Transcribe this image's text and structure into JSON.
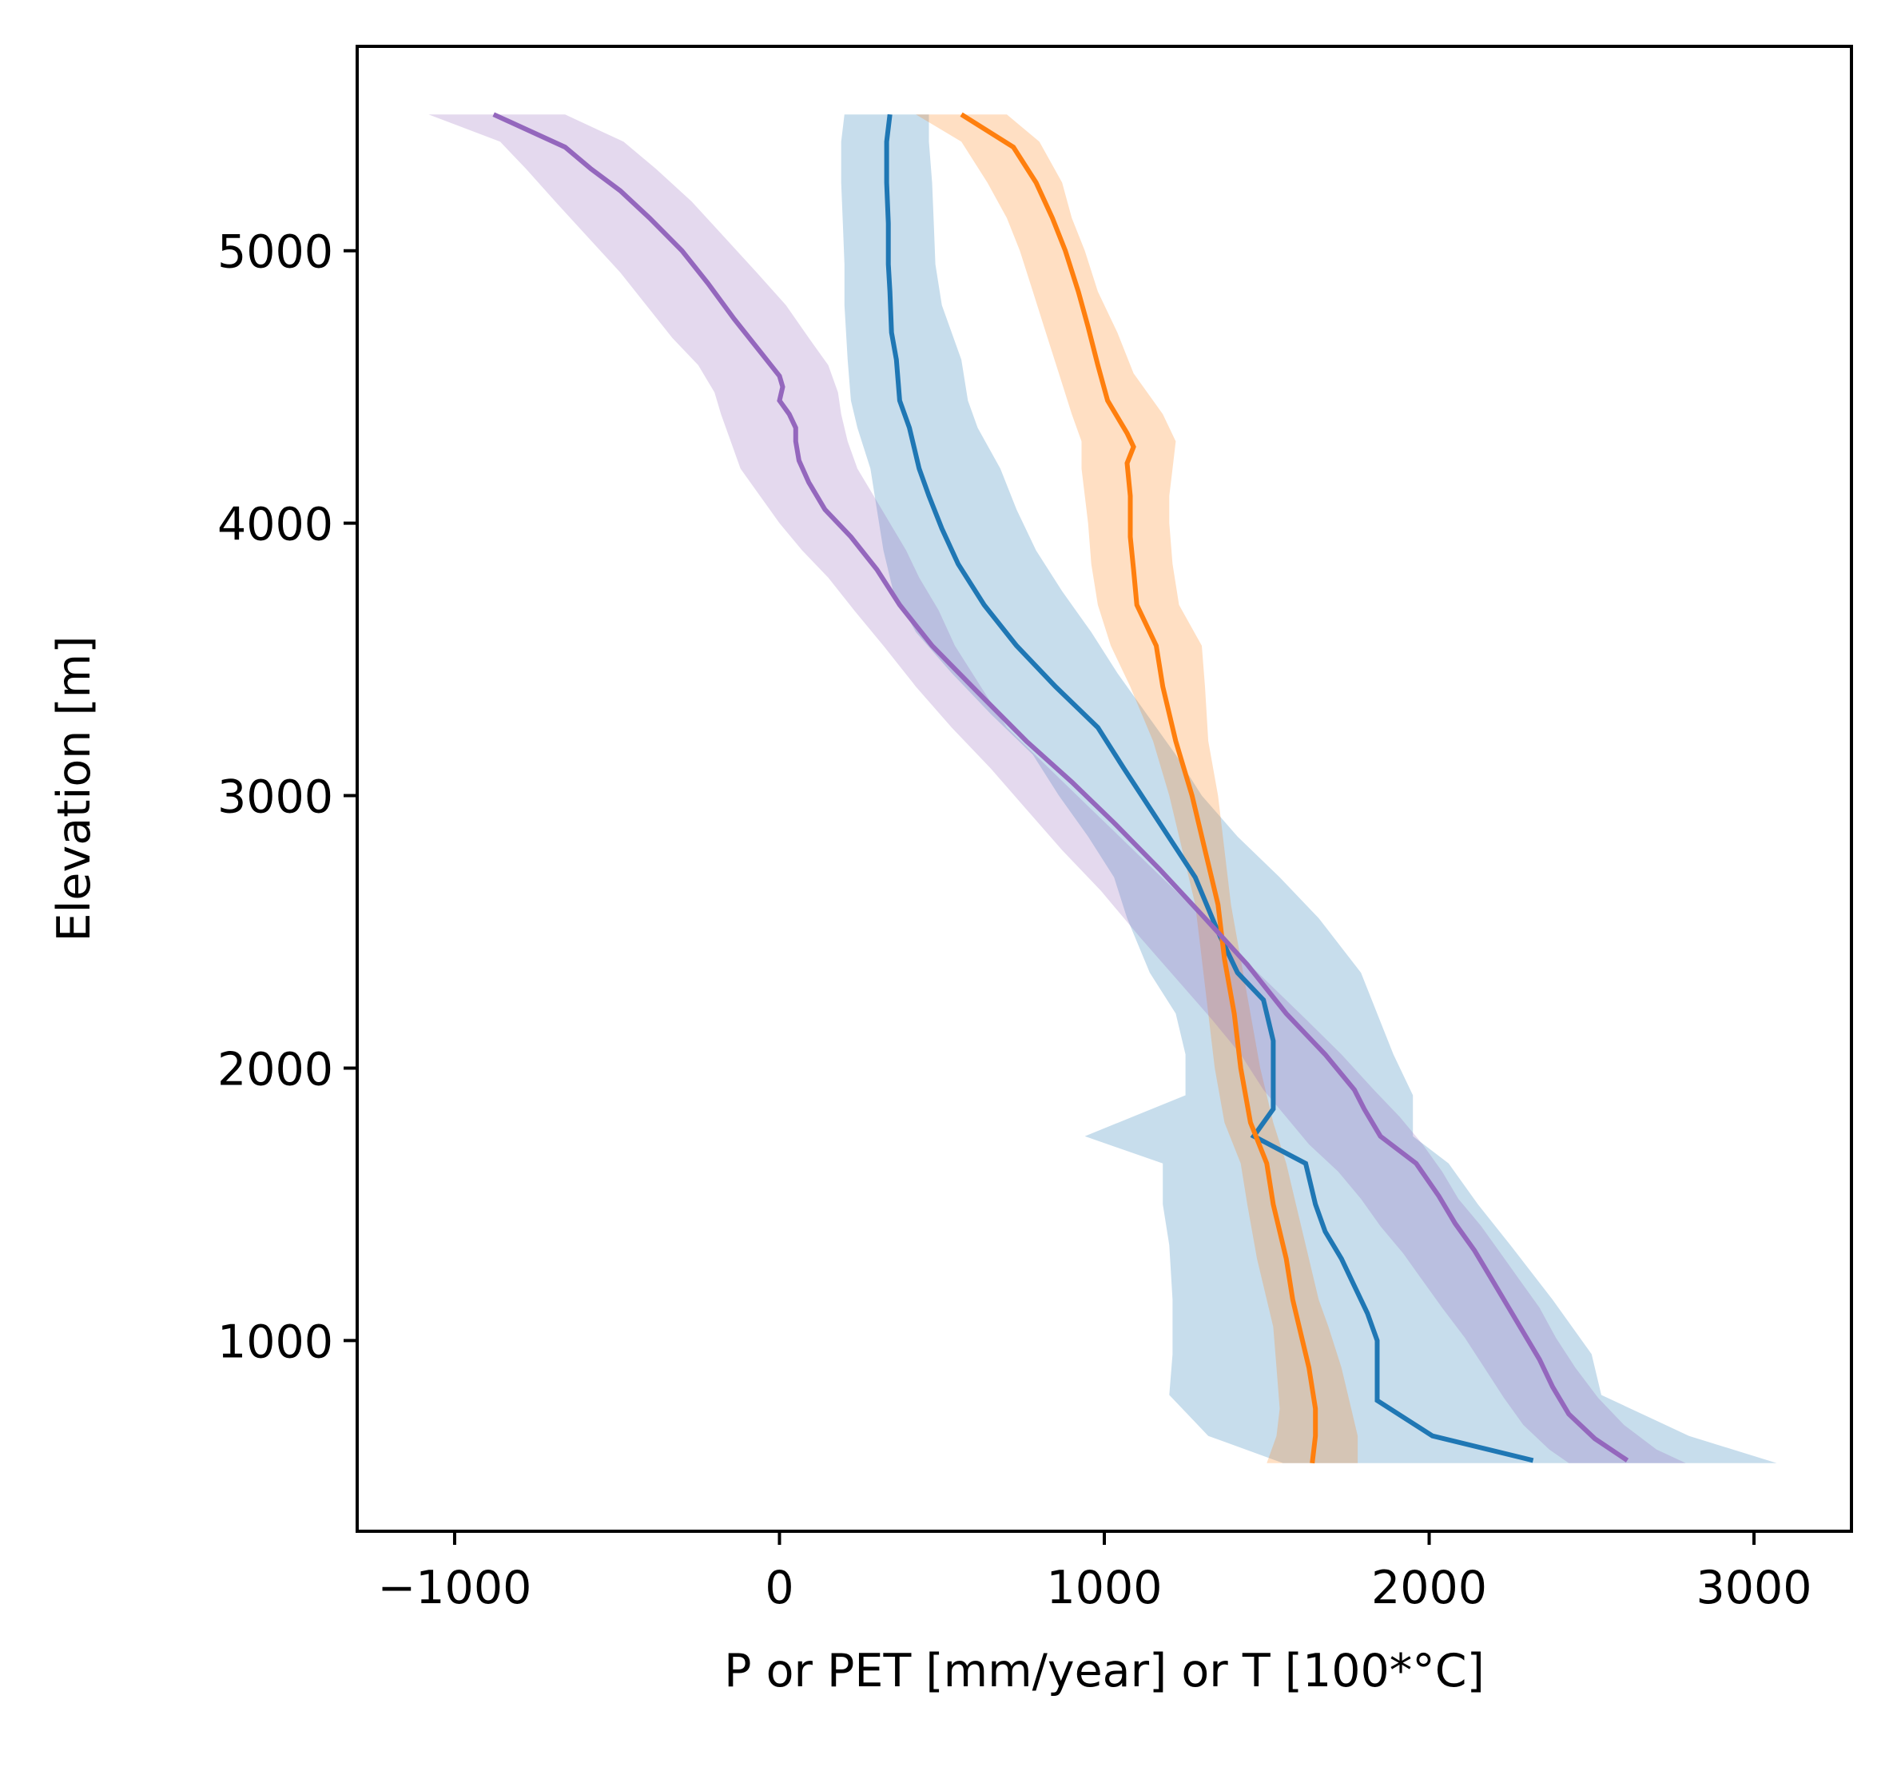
{
  "chart_data": {
    "type": "line",
    "title": "",
    "xlabel": "P or PET [mm/year] or T [100*°C]",
    "ylabel": "Elevation [m]",
    "xlim": [
      -1300,
      3300
    ],
    "ylim": [
      300,
      5750
    ],
    "xticks": [
      -1000,
      0,
      1000,
      2000,
      3000
    ],
    "xtick_labels": [
      "−1000",
      "0",
      "1000",
      "2000",
      "3000"
    ],
    "yticks": [
      1000,
      2000,
      3000,
      4000,
      5000
    ],
    "ytick_labels": [
      "1000",
      "2000",
      "3000",
      "4000",
      "5000"
    ],
    "grid": false,
    "legend": null,
    "series": [
      {
        "color": "#1f77b4",
        "points": [
          [
            340,
            5500
          ],
          [
            330,
            5400
          ],
          [
            330,
            5250
          ],
          [
            335,
            5100
          ],
          [
            335,
            4950
          ],
          [
            340,
            4850
          ],
          [
            345,
            4700
          ],
          [
            360,
            4600
          ],
          [
            370,
            4450
          ],
          [
            400,
            4350
          ],
          [
            430,
            4200
          ],
          [
            460,
            4100
          ],
          [
            500,
            3980
          ],
          [
            550,
            3850
          ],
          [
            630,
            3700
          ],
          [
            730,
            3550
          ],
          [
            850,
            3400
          ],
          [
            980,
            3250
          ],
          [
            1060,
            3100
          ],
          [
            1170,
            2900
          ],
          [
            1280,
            2700
          ],
          [
            1350,
            2500
          ],
          [
            1410,
            2350
          ],
          [
            1490,
            2250
          ],
          [
            1520,
            2100
          ],
          [
            1520,
            1950
          ],
          [
            1520,
            1850
          ],
          [
            1460,
            1750
          ],
          [
            1620,
            1650
          ],
          [
            1650,
            1500
          ],
          [
            1680,
            1400
          ],
          [
            1730,
            1300
          ],
          [
            1770,
            1200
          ],
          [
            1810,
            1100
          ],
          [
            1840,
            1000
          ],
          [
            1840,
            900
          ],
          [
            1840,
            850
          ],
          [
            1840,
            780
          ],
          [
            2010,
            650
          ],
          [
            2320,
            560
          ]
        ],
        "band": [
          [
            200,
            460,
            5500
          ],
          [
            190,
            460,
            5400
          ],
          [
            190,
            470,
            5250
          ],
          [
            195,
            475,
            5100
          ],
          [
            200,
            480,
            4950
          ],
          [
            200,
            500,
            4800
          ],
          [
            210,
            560,
            4600
          ],
          [
            220,
            580,
            4450
          ],
          [
            240,
            610,
            4350
          ],
          [
            280,
            680,
            4200
          ],
          [
            300,
            730,
            4050
          ],
          [
            320,
            790,
            3900
          ],
          [
            350,
            870,
            3750
          ],
          [
            420,
            960,
            3600
          ],
          [
            530,
            1040,
            3450
          ],
          [
            650,
            1130,
            3300
          ],
          [
            780,
            1220,
            3150
          ],
          [
            860,
            1300,
            3000
          ],
          [
            950,
            1410,
            2850
          ],
          [
            1030,
            1540,
            2700
          ],
          [
            1070,
            1660,
            2550
          ],
          [
            1140,
            1790,
            2350
          ],
          [
            1220,
            1840,
            2200
          ],
          [
            1250,
            1890,
            2050
          ],
          [
            1250,
            1950,
            1900
          ],
          [
            940,
            1950,
            1750
          ],
          [
            1180,
            2060,
            1650
          ],
          [
            1180,
            2150,
            1500
          ],
          [
            1200,
            2250,
            1350
          ],
          [
            1210,
            2380,
            1150
          ],
          [
            1210,
            2500,
            950
          ],
          [
            1200,
            2530,
            800
          ],
          [
            1320,
            2800,
            650
          ],
          [
            1550,
            3070,
            550
          ]
        ]
      },
      {
        "color": "#ff7f0e",
        "points": [
          [
            560,
            5500
          ],
          [
            720,
            5380
          ],
          [
            790,
            5250
          ],
          [
            840,
            5120
          ],
          [
            880,
            5000
          ],
          [
            920,
            4850
          ],
          [
            950,
            4720
          ],
          [
            980,
            4580
          ],
          [
            1010,
            4450
          ],
          [
            1070,
            4330
          ],
          [
            1090,
            4280
          ],
          [
            1070,
            4220
          ],
          [
            1080,
            4100
          ],
          [
            1080,
            3950
          ],
          [
            1090,
            3830
          ],
          [
            1100,
            3700
          ],
          [
            1160,
            3550
          ],
          [
            1180,
            3400
          ],
          [
            1220,
            3200
          ],
          [
            1270,
            3000
          ],
          [
            1310,
            2800
          ],
          [
            1350,
            2600
          ],
          [
            1370,
            2400
          ],
          [
            1400,
            2200
          ],
          [
            1420,
            2000
          ],
          [
            1450,
            1800
          ],
          [
            1500,
            1650
          ],
          [
            1520,
            1500
          ],
          [
            1560,
            1300
          ],
          [
            1580,
            1150
          ],
          [
            1600,
            1050
          ],
          [
            1630,
            900
          ],
          [
            1650,
            750
          ],
          [
            1650,
            650
          ],
          [
            1640,
            550
          ]
        ],
        "band": [
          [
            420,
            700,
            5500
          ],
          [
            560,
            800,
            5400
          ],
          [
            640,
            870,
            5250
          ],
          [
            700,
            900,
            5120
          ],
          [
            740,
            940,
            5000
          ],
          [
            780,
            980,
            4850
          ],
          [
            820,
            1040,
            4700
          ],
          [
            860,
            1090,
            4550
          ],
          [
            900,
            1180,
            4400
          ],
          [
            930,
            1220,
            4300
          ],
          [
            930,
            1210,
            4200
          ],
          [
            940,
            1200,
            4100
          ],
          [
            950,
            1200,
            4000
          ],
          [
            960,
            1210,
            3850
          ],
          [
            980,
            1230,
            3700
          ],
          [
            1020,
            1300,
            3550
          ],
          [
            1080,
            1310,
            3400
          ],
          [
            1150,
            1320,
            3200
          ],
          [
            1200,
            1350,
            3000
          ],
          [
            1240,
            1370,
            2800
          ],
          [
            1280,
            1390,
            2600
          ],
          [
            1300,
            1420,
            2400
          ],
          [
            1320,
            1450,
            2200
          ],
          [
            1340,
            1480,
            2000
          ],
          [
            1370,
            1520,
            1800
          ],
          [
            1420,
            1560,
            1650
          ],
          [
            1440,
            1590,
            1500
          ],
          [
            1470,
            1630,
            1300
          ],
          [
            1500,
            1660,
            1150
          ],
          [
            1520,
            1690,
            1050
          ],
          [
            1530,
            1730,
            900
          ],
          [
            1540,
            1760,
            750
          ],
          [
            1530,
            1780,
            650
          ],
          [
            1500,
            1780,
            550
          ]
        ]
      },
      {
        "color": "#9467bd",
        "points": [
          [
            -880,
            5500
          ],
          [
            -660,
            5380
          ],
          [
            -580,
            5300
          ],
          [
            -490,
            5220
          ],
          [
            -400,
            5120
          ],
          [
            -300,
            5000
          ],
          [
            -220,
            4880
          ],
          [
            -140,
            4750
          ],
          [
            -60,
            4630
          ],
          [
            0,
            4540
          ],
          [
            10,
            4500
          ],
          [
            0,
            4450
          ],
          [
            30,
            4400
          ],
          [
            50,
            4350
          ],
          [
            50,
            4300
          ],
          [
            60,
            4230
          ],
          [
            90,
            4150
          ],
          [
            140,
            4050
          ],
          [
            220,
            3950
          ],
          [
            300,
            3830
          ],
          [
            370,
            3700
          ],
          [
            470,
            3550
          ],
          [
            610,
            3380
          ],
          [
            760,
            3200
          ],
          [
            900,
            3050
          ],
          [
            1030,
            2900
          ],
          [
            1170,
            2730
          ],
          [
            1310,
            2550
          ],
          [
            1440,
            2380
          ],
          [
            1560,
            2200
          ],
          [
            1680,
            2050
          ],
          [
            1770,
            1920
          ],
          [
            1800,
            1850
          ],
          [
            1850,
            1750
          ],
          [
            1960,
            1650
          ],
          [
            2030,
            1530
          ],
          [
            2080,
            1430
          ],
          [
            2140,
            1330
          ],
          [
            2190,
            1230
          ],
          [
            2240,
            1130
          ],
          [
            2290,
            1030
          ],
          [
            2340,
            930
          ],
          [
            2380,
            830
          ],
          [
            2430,
            730
          ],
          [
            2510,
            640
          ],
          [
            2610,
            560
          ]
        ],
        "band": [
          [
            -1080,
            -660,
            5500
          ],
          [
            -860,
            -480,
            5400
          ],
          [
            -780,
            -380,
            5300
          ],
          [
            -690,
            -270,
            5180
          ],
          [
            -590,
            -170,
            5050
          ],
          [
            -490,
            -70,
            4920
          ],
          [
            -410,
            20,
            4800
          ],
          [
            -330,
            90,
            4680
          ],
          [
            -250,
            150,
            4580
          ],
          [
            -200,
            180,
            4480
          ],
          [
            -180,
            190,
            4400
          ],
          [
            -150,
            210,
            4300
          ],
          [
            -120,
            240,
            4200
          ],
          [
            -60,
            290,
            4100
          ],
          [
            0,
            340,
            4000
          ],
          [
            70,
            390,
            3900
          ],
          [
            150,
            430,
            3800
          ],
          [
            230,
            490,
            3680
          ],
          [
            320,
            540,
            3550
          ],
          [
            420,
            620,
            3400
          ],
          [
            530,
            700,
            3250
          ],
          [
            650,
            830,
            3100
          ],
          [
            760,
            960,
            2950
          ],
          [
            870,
            1090,
            2800
          ],
          [
            990,
            1220,
            2650
          ],
          [
            1110,
            1360,
            2480
          ],
          [
            1220,
            1490,
            2330
          ],
          [
            1330,
            1620,
            2180
          ],
          [
            1420,
            1730,
            2050
          ],
          [
            1490,
            1830,
            1920
          ],
          [
            1560,
            1910,
            1820
          ],
          [
            1630,
            1980,
            1720
          ],
          [
            1720,
            2040,
            1620
          ],
          [
            1790,
            2090,
            1520
          ],
          [
            1850,
            2160,
            1420
          ],
          [
            1920,
            2220,
            1320
          ],
          [
            1980,
            2280,
            1220
          ],
          [
            2040,
            2340,
            1120
          ],
          [
            2110,
            2390,
            1010
          ],
          [
            2170,
            2450,
            900
          ],
          [
            2230,
            2520,
            790
          ],
          [
            2290,
            2600,
            690
          ],
          [
            2370,
            2700,
            600
          ],
          [
            2430,
            2790,
            550
          ]
        ]
      }
    ]
  }
}
